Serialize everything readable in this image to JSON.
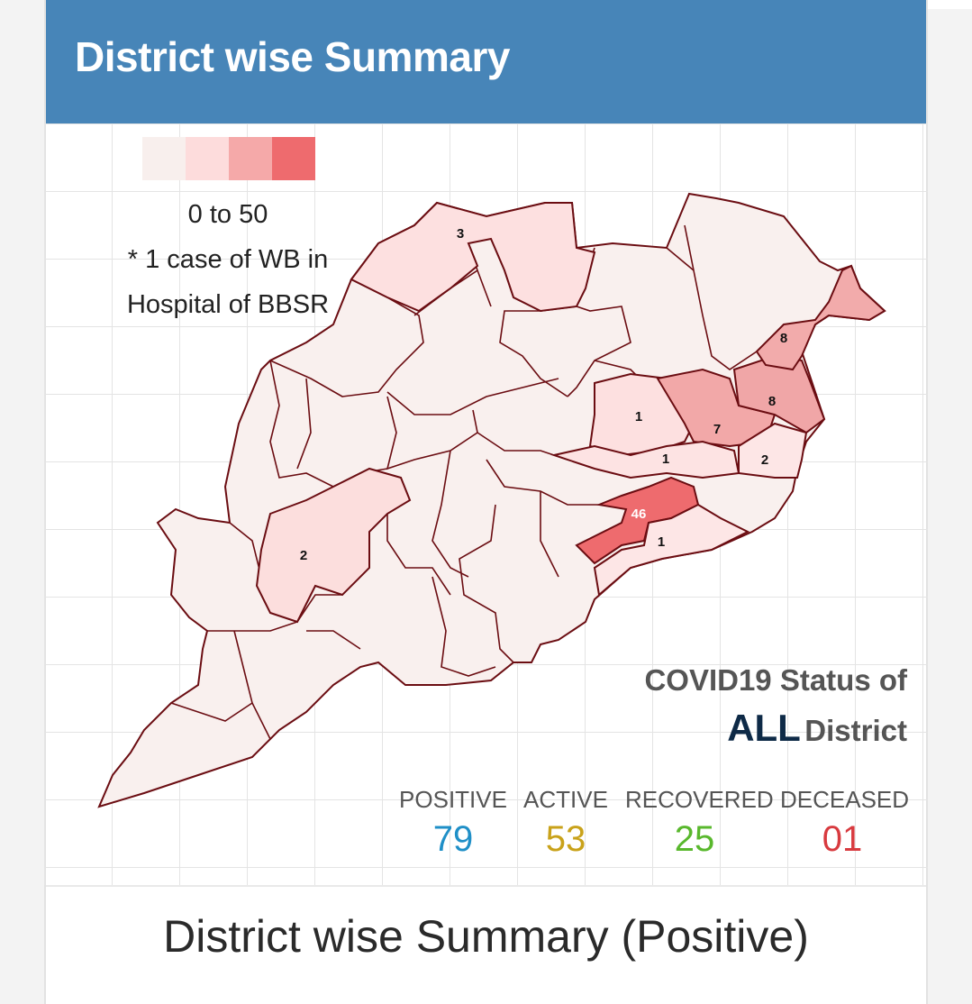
{
  "header": {
    "title": "District wise Summary"
  },
  "legend": {
    "colors": [
      "#f8efed",
      "#fddcdc",
      "#f5a9a9",
      "#ee6b6e"
    ],
    "range_label": "0 to 50",
    "note_line1": "* 1 case of WB in",
    "note_line2": "Hospital of BBSR"
  },
  "map": {
    "base_fill": "#f9f0ee",
    "border_color": "#6b0d12",
    "district_labels": [
      "3",
      "8",
      "8",
      "1",
      "7",
      "1",
      "2",
      "46",
      "1",
      "2"
    ]
  },
  "status": {
    "line1": "COVID19 Status of",
    "line2_big": "ALL",
    "line2_small": "District",
    "stats": [
      {
        "label": "POSITIVE",
        "value": "79",
        "color": "#1f8fc7"
      },
      {
        "label": "ACTIVE",
        "value": "53",
        "color": "#c9a21a"
      },
      {
        "label": "RECOVERED",
        "value": "25",
        "color": "#59b82d"
      },
      {
        "label": "DECEASED",
        "value": "01",
        "color": "#d83a3f"
      }
    ]
  },
  "footer": {
    "section_title": "District wise Summary (Positive)"
  }
}
